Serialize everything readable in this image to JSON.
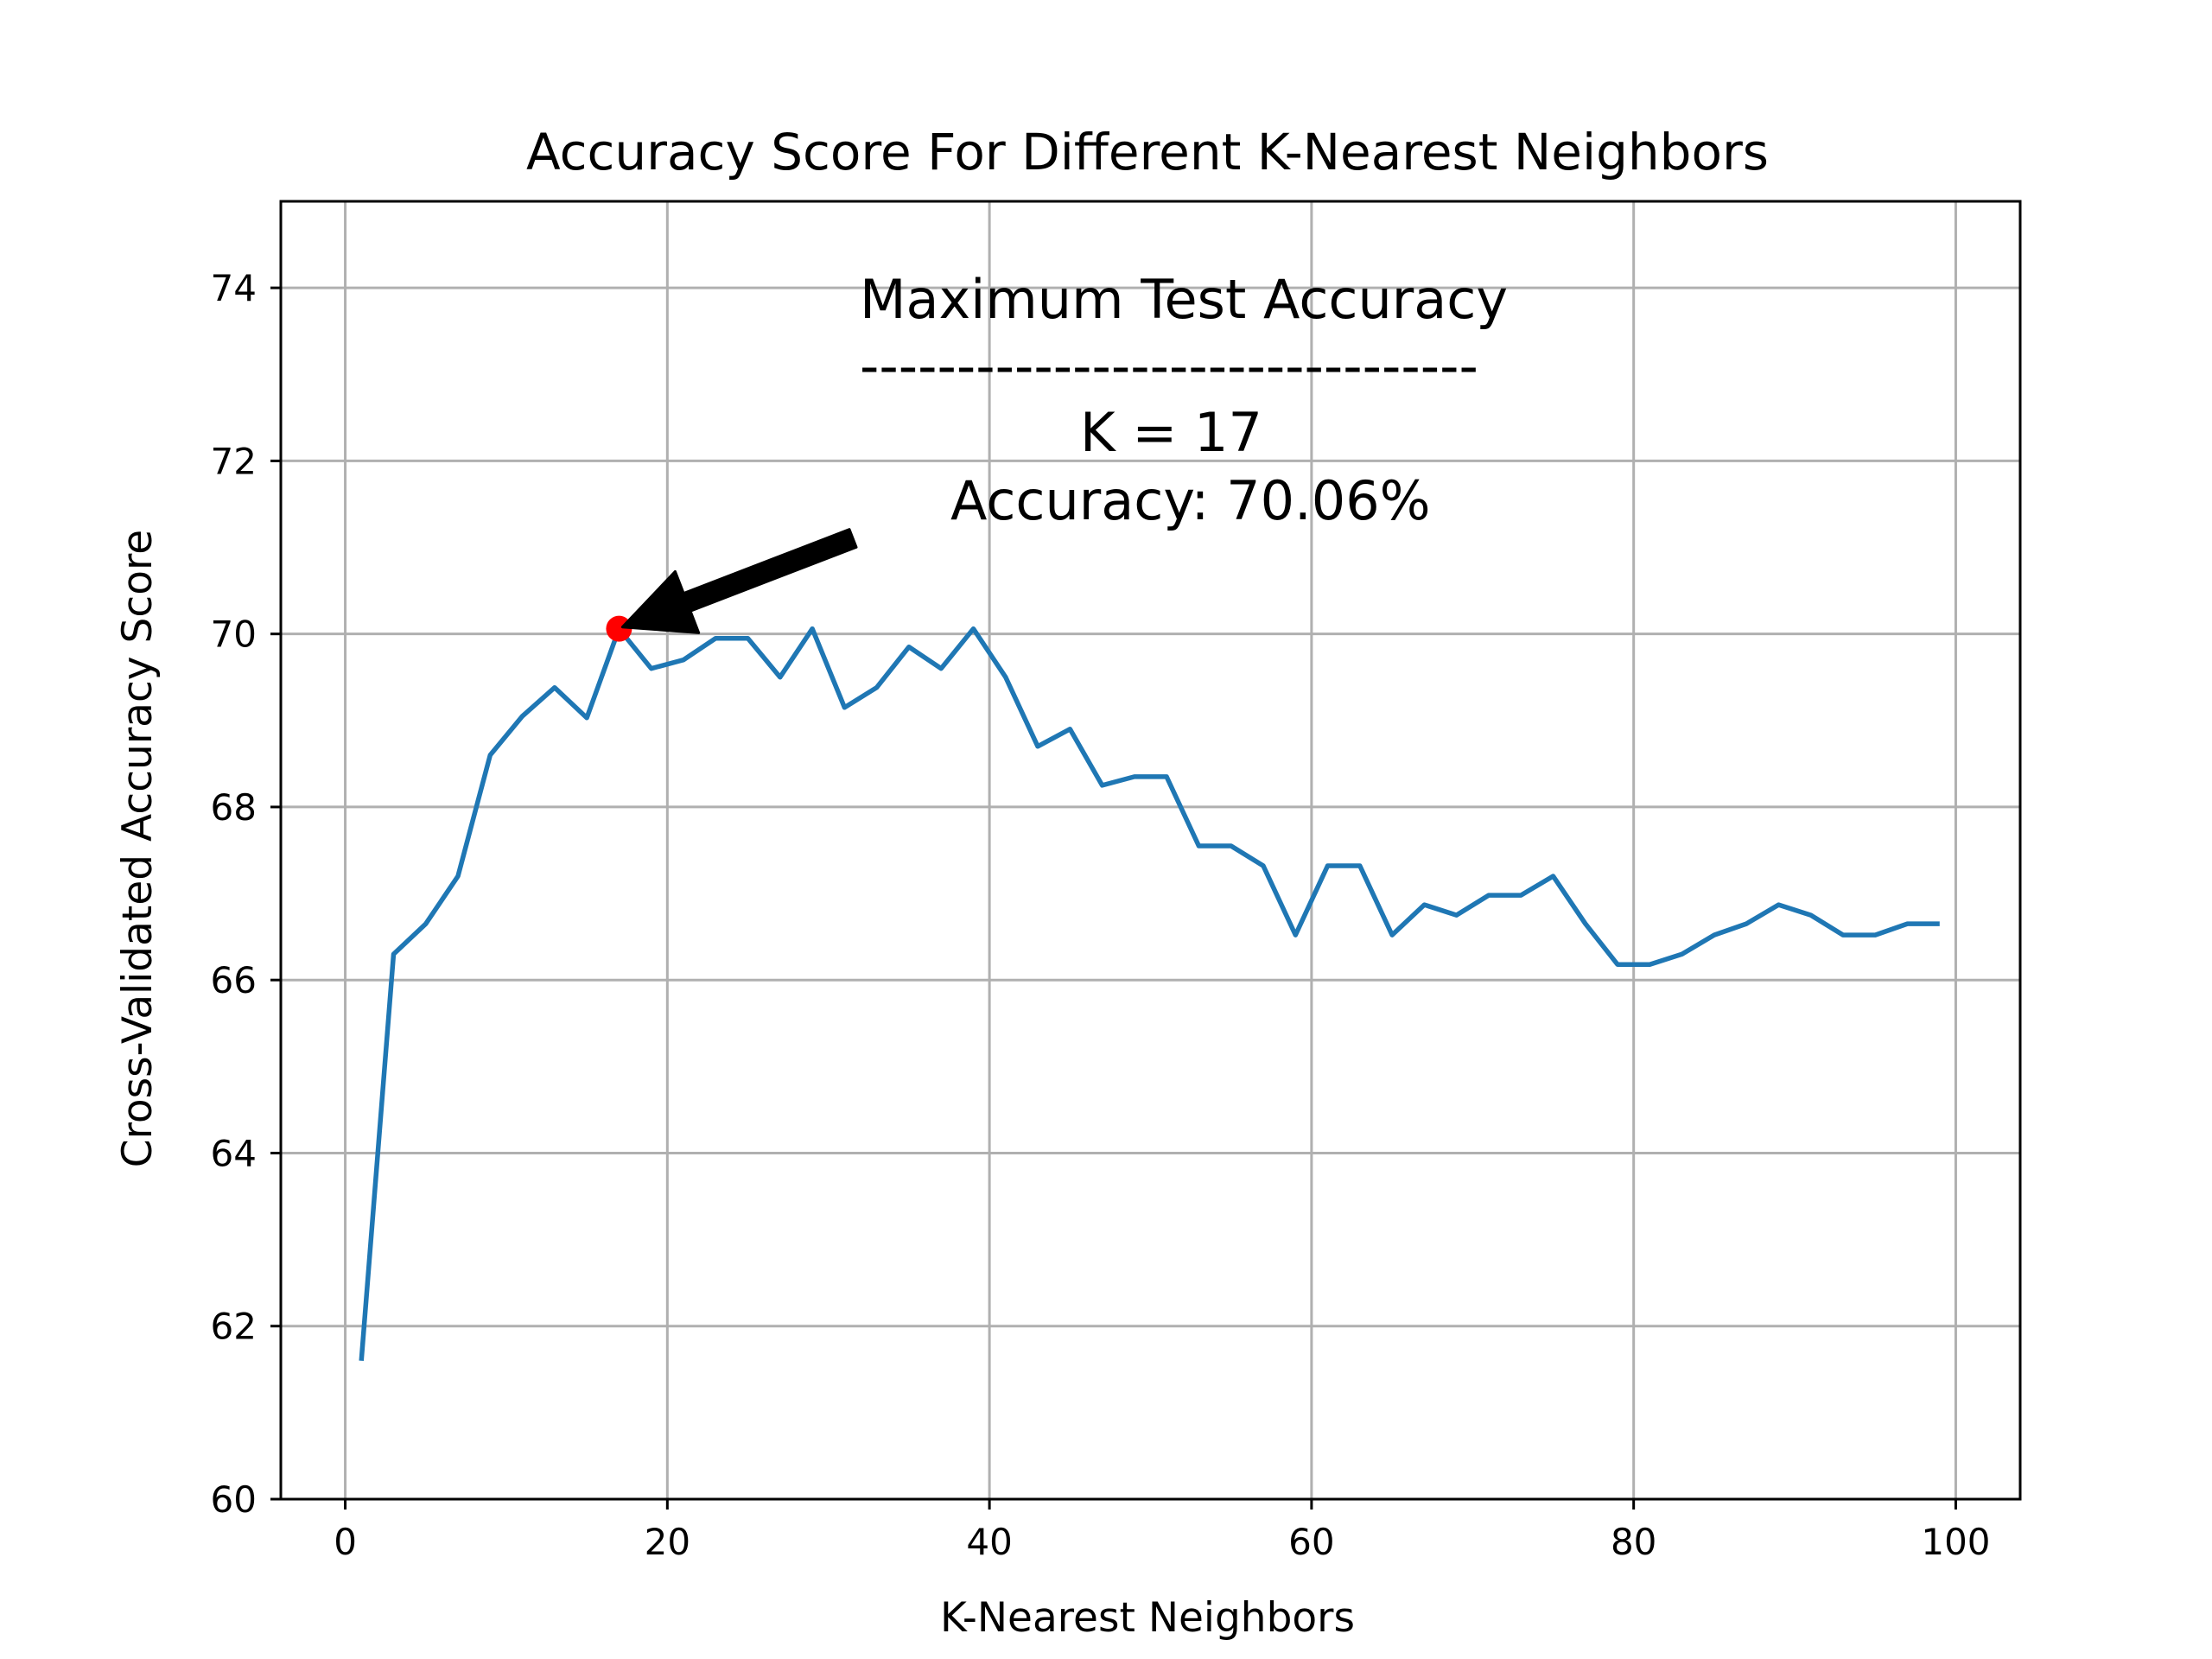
{
  "chart_data": {
    "type": "line",
    "title": "Accuracy Score For Different K-Nearest Neighbors",
    "xlabel": "K-Nearest Neighbors",
    "ylabel": "Cross-Validated Accuracy Score",
    "xlim": [
      -4.0,
      104.0
    ],
    "ylim": [
      60,
      75
    ],
    "xticks": [
      0,
      20,
      40,
      60,
      80,
      100
    ],
    "yticks": [
      60,
      62,
      64,
      66,
      68,
      70,
      72,
      74
    ],
    "grid": true,
    "line_color": "#1f77b4",
    "marker_color": "#ff0000",
    "series": [
      {
        "x": [
          1,
          3,
          5,
          7,
          9,
          11,
          13,
          15,
          17,
          19,
          21,
          23,
          25,
          27,
          29,
          31,
          33,
          35,
          37,
          39,
          41,
          43,
          45,
          47,
          49,
          51,
          53,
          55,
          57,
          59,
          61,
          63,
          65,
          67,
          69,
          71,
          73,
          75,
          77,
          79,
          81,
          83,
          85,
          87,
          89,
          91,
          93,
          95,
          97,
          99
        ],
        "values": [
          61.6,
          66.3,
          66.65,
          67.2,
          68.6,
          69.05,
          69.38,
          69.03,
          70.06,
          69.6,
          69.7,
          69.95,
          69.95,
          69.5,
          70.06,
          69.15,
          69.38,
          69.85,
          69.6,
          70.06,
          69.5,
          68.7,
          68.9,
          68.25,
          68.35,
          68.35,
          67.55,
          67.55,
          67.32,
          66.52,
          67.32,
          67.32,
          66.52,
          66.87,
          66.75,
          66.98,
          66.98,
          67.2,
          66.65,
          66.18,
          66.18,
          66.3,
          66.52,
          66.65,
          66.87,
          66.75,
          66.52,
          66.52,
          66.65,
          66.65
        ]
      }
    ],
    "highlight_point": {
      "x": 17,
      "y": 70.06
    },
    "annotation": {
      "line1": "Maximum Test Accuracy",
      "line2": "--------------------------------",
      "line3": "K = 17",
      "line4": "Accuracy: 70.06%"
    }
  }
}
